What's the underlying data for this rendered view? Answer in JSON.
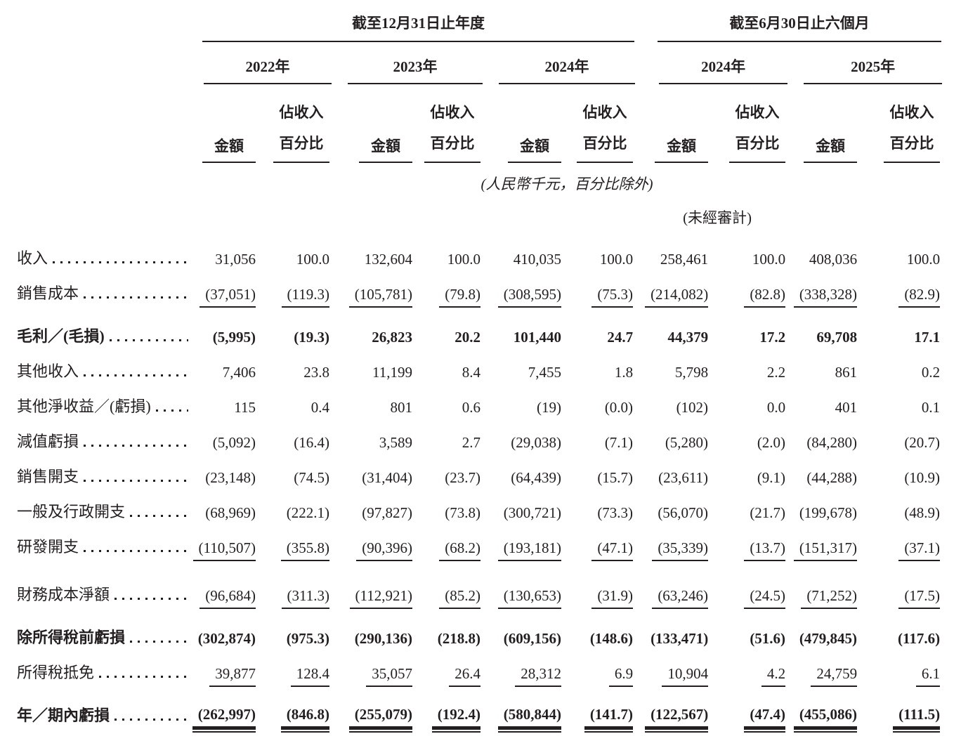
{
  "page": {
    "background": "#ffffff",
    "text_color": "#231f20"
  },
  "table": {
    "period_groups": [
      {
        "label": "截至12月31日止年度"
      },
      {
        "label": "截至6月30日止六個月"
      }
    ],
    "year_columns": [
      {
        "year": "2022年"
      },
      {
        "year": "2023年"
      },
      {
        "year": "2024年"
      },
      {
        "year": "2024年"
      },
      {
        "year": "2025年"
      }
    ],
    "sub_headers": {
      "amount": "金額",
      "pct_line1": "佔收入",
      "pct_line2": "百分比"
    },
    "unit_note": "(人民幣千元，百分比除外)",
    "unaudited_note": "(未經審計)",
    "rows": [
      {
        "label": "收入",
        "bold": false,
        "rule": "none",
        "gap": 0,
        "values": [
          "31,056",
          "100.0",
          "132,604",
          "100.0",
          "410,035",
          "100.0",
          "258,461",
          "100.0",
          "408,036",
          "100.0"
        ]
      },
      {
        "label": "銷售成本",
        "bold": false,
        "rule": "single",
        "gap": 0,
        "values": [
          "(37,051)",
          "(119.3)",
          "(105,781)",
          "(79.8)",
          "(308,595)",
          "(75.3)",
          "(214,082)",
          "(82.8)",
          "(338,328)",
          "(82.9)"
        ]
      },
      {
        "label": "毛利／(毛損)",
        "bold": true,
        "rule": "none",
        "gap": 2,
        "values": [
          "(5,995)",
          "(19.3)",
          "26,823",
          "20.2",
          "101,440",
          "24.7",
          "44,379",
          "17.2",
          "69,708",
          "17.1"
        ]
      },
      {
        "label": "其他收入",
        "bold": false,
        "rule": "none",
        "gap": 0,
        "values": [
          "7,406",
          "23.8",
          "11,199",
          "8.4",
          "7,455",
          "1.8",
          "5,798",
          "2.2",
          "861",
          "0.2"
        ]
      },
      {
        "label": "其他淨收益／(虧損)",
        "bold": false,
        "rule": "none",
        "gap": 0,
        "values": [
          "115",
          "0.4",
          "801",
          "0.6",
          "(19)",
          "(0.0)",
          "(102)",
          "0.0",
          "401",
          "0.1"
        ]
      },
      {
        "label": "減值虧損",
        "bold": false,
        "rule": "none",
        "gap": 0,
        "values": [
          "(5,092)",
          "(16.4)",
          "3,589",
          "2.7",
          "(29,038)",
          "(7.1)",
          "(5,280)",
          "(2.0)",
          "(84,280)",
          "(20.7)"
        ]
      },
      {
        "label": "銷售開支",
        "bold": false,
        "rule": "none",
        "gap": 0,
        "values": [
          "(23,148)",
          "(74.5)",
          "(31,404)",
          "(23.7)",
          "(64,439)",
          "(15.7)",
          "(23,611)",
          "(9.1)",
          "(44,288)",
          "(10.9)"
        ]
      },
      {
        "label": "一般及行政開支",
        "bold": false,
        "rule": "none",
        "gap": 0,
        "values": [
          "(68,969)",
          "(222.1)",
          "(97,827)",
          "(73.8)",
          "(300,721)",
          "(73.3)",
          "(56,070)",
          "(21.7)",
          "(199,678)",
          "(48.9)"
        ]
      },
      {
        "label": "研發開支",
        "bold": false,
        "rule": "single",
        "gap": 0,
        "values": [
          "(110,507)",
          "(355.8)",
          "(90,396)",
          "(68.2)",
          "(193,181)",
          "(47.1)",
          "(35,339)",
          "(13.7)",
          "(151,317)",
          "(37.1)"
        ]
      },
      {
        "label": "財務成本淨額",
        "bold": false,
        "rule": "single",
        "gap": 1,
        "values": [
          "(96,684)",
          "(311.3)",
          "(112,921)",
          "(85.2)",
          "(130,653)",
          "(31.9)",
          "(63,246)",
          "(24.5)",
          "(71,252)",
          "(17.5)"
        ]
      },
      {
        "label": "除所得稅前虧損",
        "bold": true,
        "rule": "none",
        "gap": 2,
        "values": [
          "(302,874)",
          "(975.3)",
          "(290,136)",
          "(218.8)",
          "(609,156)",
          "(148.6)",
          "(133,471)",
          "(51.6)",
          "(479,845)",
          "(117.6)"
        ]
      },
      {
        "label": "所得稅抵免",
        "bold": false,
        "rule": "single",
        "gap": 0,
        "values": [
          "39,877",
          "128.4",
          "35,057",
          "26.4",
          "28,312",
          "6.9",
          "10,904",
          "4.2",
          "24,759",
          "6.1"
        ]
      },
      {
        "label": "年／期內虧損",
        "bold": true,
        "rule": "double",
        "gap": 2,
        "values": [
          "(262,997)",
          "(846.8)",
          "(255,079)",
          "(192.4)",
          "(580,844)",
          "(141.7)",
          "(122,567)",
          "(47.4)",
          "(455,086)",
          "(111.5)"
        ]
      }
    ]
  }
}
